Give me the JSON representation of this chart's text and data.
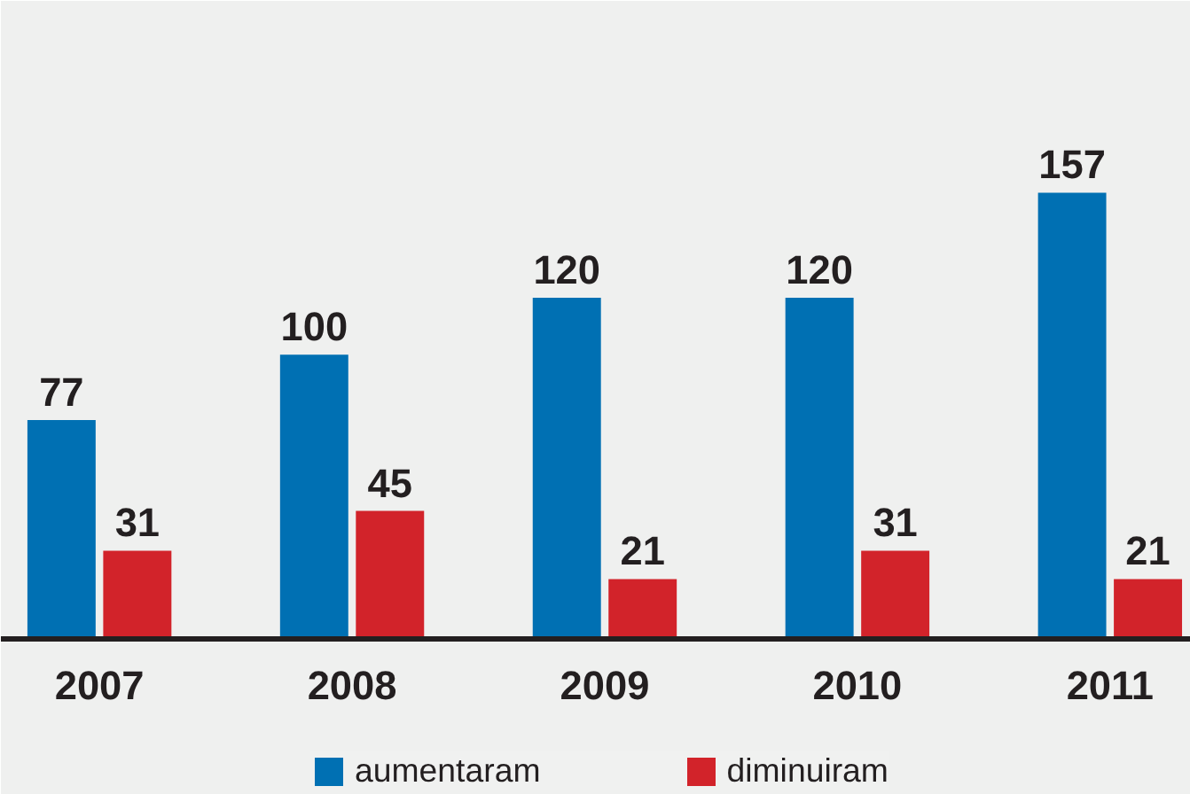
{
  "chart_data": {
    "type": "bar",
    "categories": [
      "2007",
      "2008",
      "2009",
      "2010",
      "2011"
    ],
    "series": [
      {
        "name": "aumentaram",
        "color": "#0070b3",
        "values": [
          77,
          100,
          120,
          120,
          157
        ]
      },
      {
        "name": "diminuiram",
        "color": "#d2232a",
        "values": [
          31,
          45,
          21,
          31,
          21
        ]
      }
    ],
    "data_labels": true,
    "legend": "bottom"
  }
}
